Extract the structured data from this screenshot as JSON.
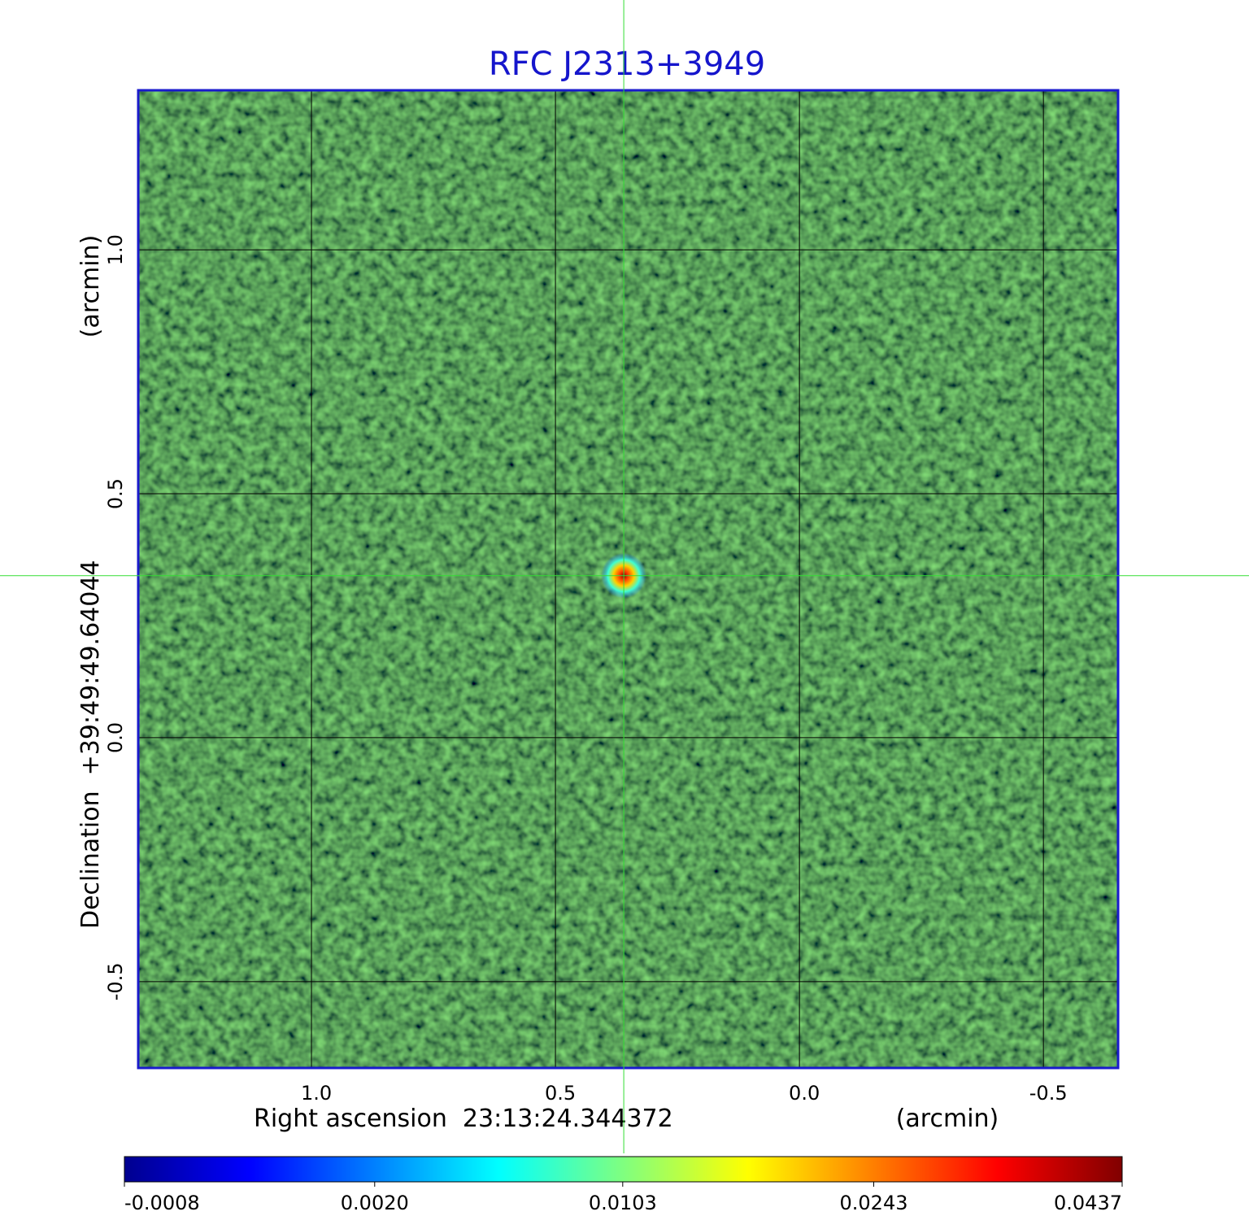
{
  "chart_data": {
    "type": "image",
    "title": "RFC J2313+3949",
    "x_label": "Right ascension  23:13:24.344372",
    "x_unit": "(arcmin)",
    "y_label": "Declination  +39:49:49.64044",
    "y_unit": "(arcmin)",
    "xlim": [
      1.355,
      -0.653
    ],
    "xticks": [
      {
        "value": 1,
        "label": "1.0"
      },
      0.5,
      {
        "value": 0,
        "label": "0.0"
      },
      -0.5
    ],
    "ylim": [
      -0.677,
      1.327
    ],
    "yticks": [
      {
        "value": 1,
        "label": "1.0"
      },
      0.5,
      {
        "value": 0,
        "label": "0.0"
      },
      -0.5
    ],
    "grid": true,
    "crosshair": {
      "x": 0.36,
      "y": 0.332
    },
    "source": {
      "x": 0.36,
      "y": 0.332,
      "peak": 0.0437
    },
    "colorbar_lim": [
      -0.0008,
      0.0437
    ],
    "colorbar_scale": "sqrt",
    "colorbar_ticks": [
      -0.0008,
      {
        "value": 0.002,
        "label": "0.0020"
      },
      0.0103,
      0.0243,
      0.0437
    ]
  }
}
